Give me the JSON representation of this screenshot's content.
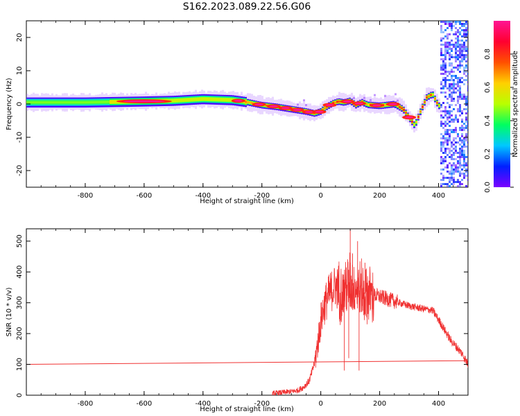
{
  "title": "S162.2023.089.22.56.G06",
  "chart_data": [
    {
      "type": "heatmap",
      "xlabel": "Height of straight line (km)",
      "ylabel": "Frequency (Hz)",
      "xlim": [
        -1000,
        500
      ],
      "ylim": [
        -25,
        25
      ],
      "x_ticks": [
        -800,
        -600,
        -400,
        -200,
        0,
        200,
        400
      ],
      "x_tick_labels": [
        "-800",
        "-600",
        "-400",
        "-200",
        "0",
        "200",
        "400"
      ],
      "y_ticks": [
        -20,
        -10,
        0,
        10,
        20
      ],
      "y_tick_labels": [
        "-20",
        "-10",
        "0",
        "10",
        "20"
      ],
      "colorbar": {
        "label": "Normalized spectral amplitude",
        "range": [
          0.0,
          1.0
        ],
        "ticks": [
          0.0,
          0.2,
          0.4,
          0.6,
          0.8
        ],
        "tick_labels": [
          "0.0",
          "0.2",
          "0.4",
          "0.6",
          "0.8"
        ],
        "colormap": [
          "#7b00ff",
          "#0020ff",
          "#00c8ff",
          "#00ff60",
          "#b8ff00",
          "#ffd000",
          "#ff5000",
          "#ff0030",
          "#ff1493"
        ]
      },
      "ridge": {
        "x": [
          -1000,
          -800,
          -600,
          -500,
          -400,
          -300,
          -250,
          -200,
          -150,
          -100,
          -50,
          -20,
          0,
          20,
          40,
          60,
          80,
          100,
          120,
          140,
          160,
          200,
          250,
          280,
          300,
          320,
          340,
          360,
          380,
          400
        ],
        "y": [
          0.5,
          0.5,
          0.8,
          1.0,
          1.5,
          1.2,
          0.6,
          -0.3,
          -0.8,
          -1.5,
          -2.2,
          -2.8,
          -2.2,
          -0.8,
          0.2,
          0.8,
          0.5,
          1.0,
          -0.3,
          0.6,
          -0.2,
          -0.5,
          0.0,
          -1.5,
          -4.0,
          -6.5,
          -2.0,
          2.0,
          3.0,
          -0.5
        ]
      }
    },
    {
      "type": "line",
      "xlabel": "Height of straight line (km)",
      "ylabel": "SNR (10 * v/v)",
      "xlim": [
        -1000,
        500
      ],
      "ylim": [
        0,
        540
      ],
      "x_ticks": [
        -800,
        -600,
        -400,
        -200,
        0,
        200,
        400
      ],
      "x_tick_labels": [
        "-800",
        "-600",
        "-400",
        "-200",
        "0",
        "200",
        "400"
      ],
      "y_ticks": [
        0,
        100,
        200,
        300,
        400,
        500
      ],
      "y_tick_labels": [
        "0",
        "100",
        "200",
        "300",
        "400",
        "500"
      ],
      "series": [
        {
          "color": "#f03030",
          "x": [
            -165,
            -140,
            -100,
            -80,
            -60,
            -40,
            -30,
            -20,
            -10,
            0,
            10,
            20,
            30,
            40,
            50,
            60,
            80,
            100,
            120,
            140,
            160,
            180,
            200,
            250,
            300,
            350,
            380,
            400,
            440,
            480,
            500
          ],
          "y": [
            6,
            8,
            12,
            15,
            25,
            45,
            75,
            110,
            170,
            240,
            285,
            310,
            330,
            345,
            355,
            345,
            340,
            360,
            350,
            330,
            330,
            325,
            320,
            305,
            290,
            280,
            275,
            245,
            180,
            135,
            100
          ]
        },
        {
          "color": "#f03030",
          "x": [
            -1000,
            500
          ],
          "y": [
            100,
            112
          ]
        }
      ]
    }
  ]
}
